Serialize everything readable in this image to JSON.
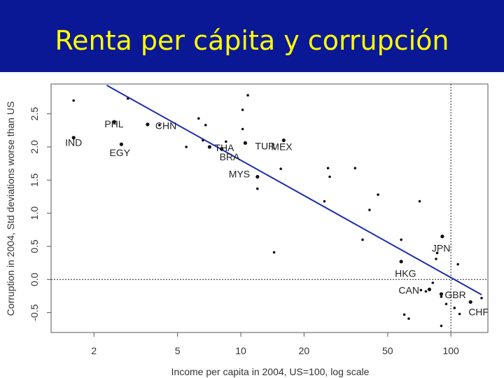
{
  "slide": {
    "title": "Renta per cápita y corrupción",
    "title_color": "#ffff00",
    "bar_color": "#0b1896"
  },
  "chart_data": {
    "type": "scatter",
    "xlabel": "Income per capita in 2004, US=100, log scale",
    "ylabel": "Corruption in 2004, Std deviations worse than US",
    "x_scale": "log",
    "xlim": [
      1.25,
      150
    ],
    "ylim": [
      -0.8,
      2.95
    ],
    "x_ticks": [
      2,
      5,
      10,
      20,
      50,
      100
    ],
    "x_tick_labels": [
      "2",
      "5",
      "10",
      "20",
      "50",
      "100"
    ],
    "y_ticks": [
      -0.5,
      0.0,
      0.5,
      1.0,
      1.5,
      2.0,
      2.5
    ],
    "y_tick_labels": [
      "-0.5",
      "0.0",
      "0.5",
      "1.0",
      "1.5",
      "2.0",
      "2.5"
    ],
    "reference_lines": {
      "x": 100,
      "y": 0
    },
    "fit_line": {
      "x": [
        2.3,
        140
      ],
      "y": [
        2.93,
        -0.23
      ],
      "color": "#1c2db0"
    },
    "labeled_points": [
      {
        "label": "IND",
        "x": 1.6,
        "y": 2.14
      },
      {
        "label": "PHL",
        "x": 2.5,
        "y": 2.38
      },
      {
        "label": "EGY",
        "x": 2.7,
        "y": 2.04
      },
      {
        "label": "CHN",
        "x": 3.6,
        "y": 2.34
      },
      {
        "label": "THA",
        "x": 7.1,
        "y": 2.0
      },
      {
        "label": "BRA",
        "x": 8.1,
        "y": 1.97
      },
      {
        "label": "TUR",
        "x": 10.5,
        "y": 2.06
      },
      {
        "label": "MEX",
        "x": 16,
        "y": 2.1
      },
      {
        "label": "MYS",
        "x": 12,
        "y": 1.55
      },
      {
        "label": "JPN",
        "x": 91,
        "y": 0.65
      },
      {
        "label": "HKG",
        "x": 58,
        "y": 0.27
      },
      {
        "label": "CAN",
        "x": 79,
        "y": -0.15
      },
      {
        "label": "GBR",
        "x": 90,
        "y": -0.22
      },
      {
        "label": "CHF",
        "x": 124,
        "y": -0.34
      }
    ],
    "points": [
      {
        "x": 1.6,
        "y": 2.7
      },
      {
        "x": 2.9,
        "y": 2.73
      },
      {
        "x": 4.1,
        "y": 2.33
      },
      {
        "x": 5.5,
        "y": 2.0
      },
      {
        "x": 6.3,
        "y": 2.43
      },
      {
        "x": 6.8,
        "y": 2.33
      },
      {
        "x": 6.6,
        "y": 2.1
      },
      {
        "x": 8.5,
        "y": 2.08
      },
      {
        "x": 10.2,
        "y": 2.56
      },
      {
        "x": 10.8,
        "y": 2.78
      },
      {
        "x": 10.2,
        "y": 2.27
      },
      {
        "x": 12,
        "y": 1.37
      },
      {
        "x": 15.5,
        "y": 1.67
      },
      {
        "x": 14.4,
        "y": 0.41
      },
      {
        "x": 25,
        "y": 1.18
      },
      {
        "x": 26,
        "y": 1.68
      },
      {
        "x": 26.5,
        "y": 1.55
      },
      {
        "x": 35,
        "y": 1.68
      },
      {
        "x": 41,
        "y": 1.05
      },
      {
        "x": 45,
        "y": 1.28
      },
      {
        "x": 38,
        "y": 0.6
      },
      {
        "x": 58,
        "y": 0.6
      },
      {
        "x": 71,
        "y": 1.18
      },
      {
        "x": 86,
        "y": 0.4
      },
      {
        "x": 85,
        "y": 0.31
      },
      {
        "x": 82,
        "y": -0.05
      },
      {
        "x": 72,
        "y": -0.16
      },
      {
        "x": 76,
        "y": -0.18
      },
      {
        "x": 90,
        "y": -0.26
      },
      {
        "x": 95,
        "y": -0.37
      },
      {
        "x": 108,
        "y": 0.23
      },
      {
        "x": 140,
        "y": -0.28
      },
      {
        "x": 60,
        "y": -0.53
      },
      {
        "x": 63,
        "y": -0.59
      },
      {
        "x": 90,
        "y": -0.7
      },
      {
        "x": 104,
        "y": -0.43
      },
      {
        "x": 110,
        "y": -0.52
      }
    ]
  }
}
